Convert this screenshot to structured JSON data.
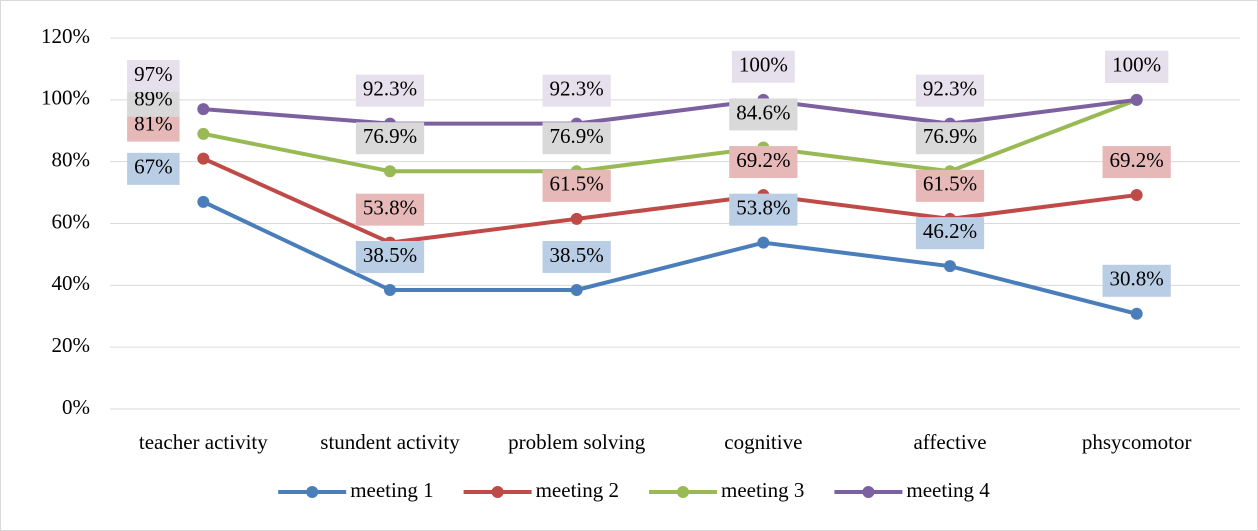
{
  "chart_data": {
    "type": "line",
    "categories": [
      "teacher activity",
      "stundent activity",
      "problem solving",
      "cognitive",
      "affective",
      "phsycomotor"
    ],
    "series": [
      {
        "name": "meeting 1",
        "color": "#4a7ebb",
        "label_color": "#b9cde5",
        "values": [
          67,
          38.5,
          38.5,
          53.8,
          46.2,
          30.8
        ],
        "value_labels": [
          "67%",
          "38.5%",
          "38.5%",
          "53.8%",
          "46.2%",
          "30.8%"
        ]
      },
      {
        "name": "meeting 2",
        "color": "#be4b48",
        "label_color": "#e6b9b8",
        "values": [
          81,
          53.8,
          61.5,
          69.2,
          61.5,
          69.2
        ],
        "value_labels": [
          "81%",
          "53.8%",
          "61.5%",
          "69.2%",
          "61.5%",
          "69.2%"
        ]
      },
      {
        "name": "meeting 3",
        "color": "#98b954",
        "label_color": "#d9d9d9",
        "values": [
          89,
          76.9,
          76.9,
          84.6,
          76.9,
          100
        ],
        "value_labels": [
          "89%",
          "76.9%",
          "76.9%",
          "84.6%",
          "76.9%",
          "100%"
        ]
      },
      {
        "name": "meeting 4",
        "color": "#7d60a0",
        "label_color": "#e6e0ec",
        "values": [
          97,
          92.3,
          92.3,
          100,
          92.3,
          100
        ],
        "value_labels": [
          "97%",
          "92.3%",
          "92.3%",
          "100%",
          "92.3%",
          "100%"
        ]
      }
    ],
    "ylim": [
      0,
      120
    ],
    "yticks": [
      {
        "value": 0,
        "label": "0%"
      },
      {
        "value": 20,
        "label": "20%"
      },
      {
        "value": 40,
        "label": "40%"
      },
      {
        "value": 60,
        "label": "60%"
      },
      {
        "value": 80,
        "label": "80%"
      },
      {
        "value": 100,
        "label": "100%"
      },
      {
        "value": 120,
        "label": "120%"
      }
    ],
    "grid": true,
    "legend": "bottom"
  }
}
